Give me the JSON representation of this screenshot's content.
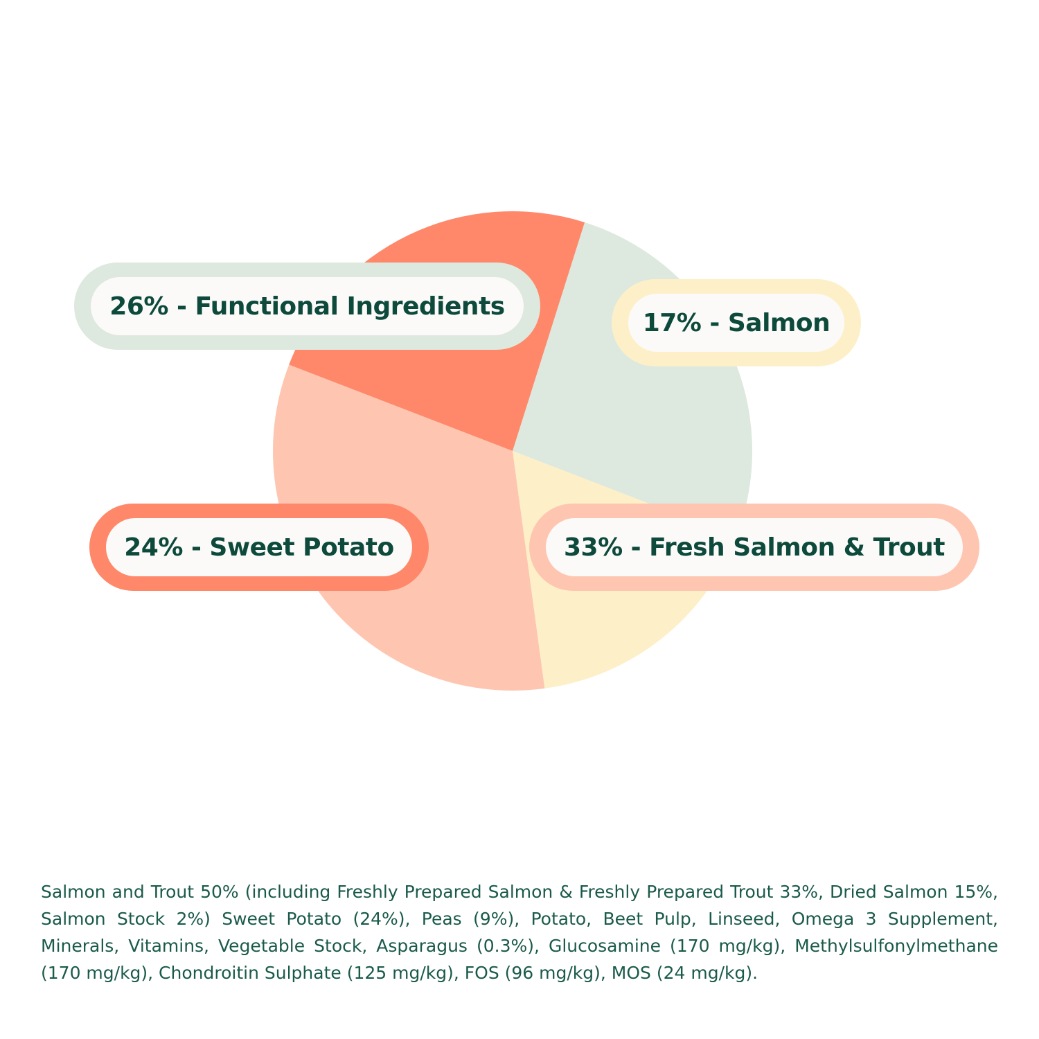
{
  "chart_data": {
    "type": "pie",
    "title": "",
    "slices": [
      {
        "label": "26% - Functional Ingredients",
        "value": 26,
        "color": "#dde8de",
        "border_color": "#dde8de"
      },
      {
        "label": "17% - Salmon",
        "value": 17,
        "color": "#fdf0c8",
        "border_color": "#fdf0c8"
      },
      {
        "label": "33% - Fresh Salmon & Trout",
        "value": 33,
        "color": "#fec6b1",
        "border_color": "#fec6b1"
      },
      {
        "label": "24% - Sweet Potato",
        "value": 24,
        "color": "#fe8869",
        "border_color": "#fe8869"
      }
    ]
  },
  "ingredients_text": "Salmon and Trout 50% (including Freshly Prepared Salmon & Freshly Prepared Trout 33%, Dried Salmon 15%, Salmon Stock 2%) Sweet Potato (24%), Peas (9%), Potato, Beet Pulp, Linseed, Omega 3 Supplement, Minerals, Vitamins, Vegetable Stock, Asparagus (0.3%), Glucosamine (170 mg/kg), Methylsulfonylmethane (170 mg/kg), Chondroitin Sulphate (125 mg/kg), FOS (96 mg/kg), MOS (24 mg/kg).",
  "colors": {
    "label_text": "#0d4a3c",
    "ingredients_text": "#1a5a4a",
    "pill_fill": "#fbfaf8"
  }
}
